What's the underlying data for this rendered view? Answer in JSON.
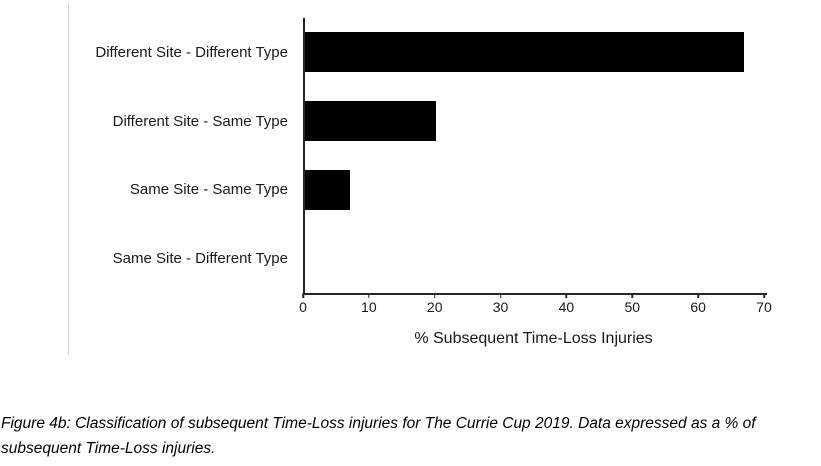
{
  "chart_data": {
    "type": "bar",
    "orientation": "horizontal",
    "categories": [
      "Different Site - Different Type",
      "Different Site - Same Type",
      "Same Site - Same Type",
      "Same Site - Different Type"
    ],
    "values": [
      67,
      20,
      7,
      0
    ],
    "title": "",
    "xlabel": "% Subsequent Time-Loss Injuries",
    "ylabel": "",
    "xlim": [
      0,
      70
    ],
    "xticks": [
      0,
      10,
      20,
      30,
      40,
      50,
      60,
      70
    ],
    "bar_color": "#000000",
    "axis_color": "#262626",
    "grid": false,
    "legend": false
  },
  "caption": {
    "text": "Figure 4b: Classification of subsequent Time-Loss injuries for The Currie Cup 2019. Data expressed as a % of subsequent Time-Loss injuries."
  }
}
